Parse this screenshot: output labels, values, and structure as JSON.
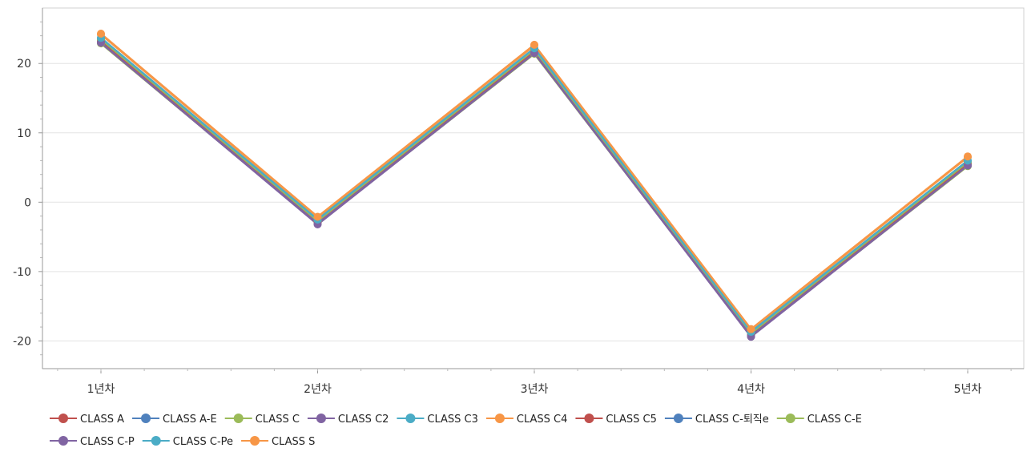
{
  "chart_data": {
    "type": "line",
    "categories": [
      "1년차",
      "2년차",
      "3년차",
      "4년차",
      "5년차"
    ],
    "ylim": [
      -24,
      28
    ],
    "yticks": [
      20,
      10,
      0,
      -10,
      -20
    ],
    "grid": true,
    "legend_position": "bottom",
    "series": [
      {
        "name": "CLASS A",
        "color": "#c0504d",
        "values": [
          23.1,
          -3.0,
          21.6,
          -19.2,
          5.4
        ]
      },
      {
        "name": "CLASS A-E",
        "color": "#4f81bd",
        "values": [
          23.4,
          -2.8,
          21.9,
          -19.0,
          5.7
        ]
      },
      {
        "name": "CLASS C",
        "color": "#9bbb59",
        "values": [
          22.9,
          -3.1,
          21.4,
          -19.3,
          5.2
        ]
      },
      {
        "name": "CLASS C2",
        "color": "#8064a2",
        "values": [
          23.0,
          -3.2,
          21.5,
          -19.4,
          5.3
        ]
      },
      {
        "name": "CLASS C3",
        "color": "#4bacc6",
        "values": [
          23.2,
          -3.0,
          21.7,
          -19.2,
          5.5
        ]
      },
      {
        "name": "CLASS C4",
        "color": "#f79646",
        "values": [
          24.2,
          -2.2,
          22.6,
          -18.4,
          6.5
        ]
      },
      {
        "name": "CLASS C5",
        "color": "#c0504d",
        "values": [
          23.3,
          -2.9,
          21.8,
          -19.1,
          5.6
        ]
      },
      {
        "name": "CLASS C-퇴직e",
        "color": "#4f81bd",
        "values": [
          23.6,
          -2.6,
          22.1,
          -18.8,
          5.9
        ]
      },
      {
        "name": "CLASS C-E",
        "color": "#9bbb59",
        "values": [
          23.5,
          -2.7,
          22.0,
          -18.9,
          5.8
        ]
      },
      {
        "name": "CLASS C-P",
        "color": "#8064a2",
        "values": [
          23.0,
          -3.1,
          21.5,
          -19.3,
          5.3
        ]
      },
      {
        "name": "CLASS C-Pe",
        "color": "#4bacc6",
        "values": [
          23.7,
          -2.5,
          22.2,
          -18.7,
          6.0
        ]
      },
      {
        "name": "CLASS S",
        "color": "#f79646",
        "values": [
          24.3,
          -2.1,
          22.7,
          -18.3,
          6.6
        ]
      }
    ]
  }
}
